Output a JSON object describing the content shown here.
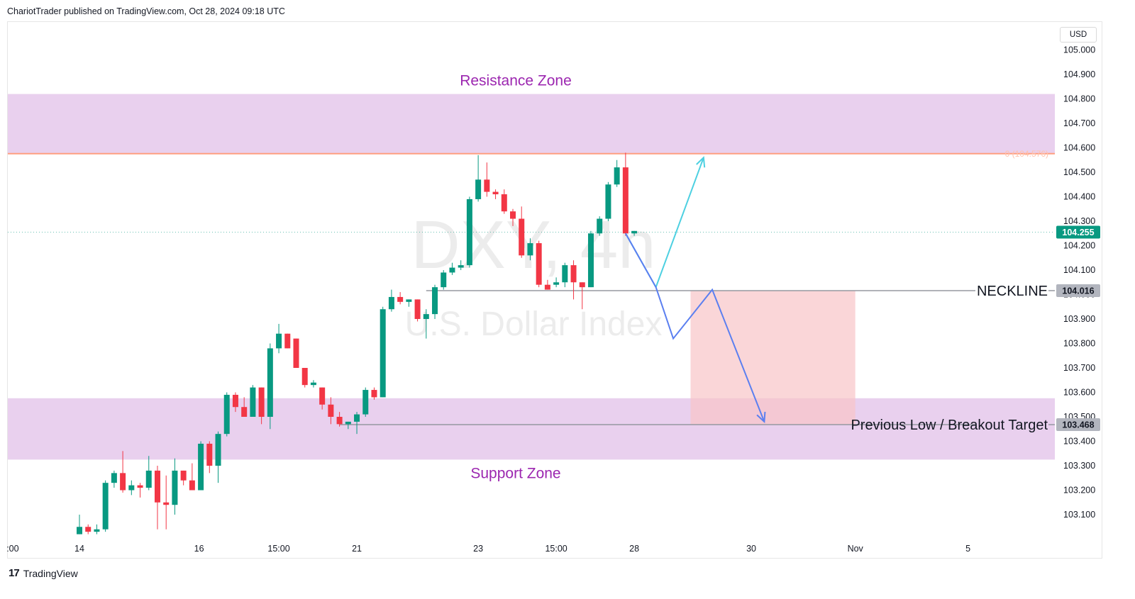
{
  "header": {
    "published_text": "ChariotTrader published on TradingView.com, Oct 28, 2024 09:18 UTC"
  },
  "footer": {
    "logo_mark": "17",
    "brand": "TradingView"
  },
  "price_scale": {
    "currency": "USD"
  },
  "watermark": {
    "symbol": "DXY, 4h",
    "name": "U.S. Dollar Index"
  },
  "colors": {
    "up": "#089981",
    "down": "#f23645",
    "zone": "#e1bee7",
    "target_box": "#f8c4c8",
    "zone_text": "#9c27b0",
    "fib_line": "#ff9f80",
    "bullish_path": "#4dd0e1",
    "bearish_path": "#5b7ff0",
    "level_line": "#9598a1",
    "last_price": "#089981"
  },
  "chart_data": {
    "type": "candlestick",
    "symbol": "DXY",
    "timeframe": "4h",
    "y_axis": {
      "min": 103.0,
      "max": 105.08,
      "ticks": [
        "103.100",
        "103.200",
        "103.300",
        "103.400",
        "103.500",
        "103.600",
        "103.700",
        "103.800",
        "103.900",
        "104.000",
        "104.100",
        "104.200",
        "104.300",
        "104.400",
        "104.500",
        "104.600",
        "104.700",
        "104.800",
        "104.900",
        "105.000"
      ]
    },
    "x_axis": {
      "labels": [
        {
          "label": ":00",
          "at": -7.7
        },
        {
          "label": "14",
          "at": 0
        },
        {
          "label": "16",
          "at": 13.8
        },
        {
          "label": "15:00",
          "at": 23
        },
        {
          "label": "21",
          "at": 32
        },
        {
          "label": "23",
          "at": 46
        },
        {
          "label": "15:00",
          "at": 55
        },
        {
          "label": "28",
          "at": 64
        },
        {
          "label": "30",
          "at": 77.5
        },
        {
          "label": "Nov",
          "at": 89.5
        },
        {
          "label": "5",
          "at": 102.5
        }
      ]
    },
    "candles": [
      {
        "o": 103.02,
        "h": 103.1,
        "l": 103.02,
        "c": 103.05
      },
      {
        "o": 103.05,
        "h": 103.06,
        "l": 103.02,
        "c": 103.03
      },
      {
        "o": 103.03,
        "h": 103.06,
        "l": 103.02,
        "c": 103.04
      },
      {
        "o": 103.04,
        "h": 103.24,
        "l": 103.03,
        "c": 103.23
      },
      {
        "o": 103.23,
        "h": 103.28,
        "l": 103.21,
        "c": 103.27
      },
      {
        "o": 103.27,
        "h": 103.36,
        "l": 103.19,
        "c": 103.2
      },
      {
        "o": 103.2,
        "h": 103.24,
        "l": 103.18,
        "c": 103.22
      },
      {
        "o": 103.22,
        "h": 103.23,
        "l": 103.17,
        "c": 103.21
      },
      {
        "o": 103.21,
        "h": 103.34,
        "l": 103.2,
        "c": 103.28
      },
      {
        "o": 103.28,
        "h": 103.3,
        "l": 103.04,
        "c": 103.15
      },
      {
        "o": 103.15,
        "h": 103.26,
        "l": 103.04,
        "c": 103.14
      },
      {
        "o": 103.14,
        "h": 103.33,
        "l": 103.1,
        "c": 103.28
      },
      {
        "o": 103.28,
        "h": 103.28,
        "l": 103.22,
        "c": 103.24
      },
      {
        "o": 103.24,
        "h": 103.31,
        "l": 103.2,
        "c": 103.2
      },
      {
        "o": 103.2,
        "h": 103.4,
        "l": 103.2,
        "c": 103.39
      },
      {
        "o": 103.39,
        "h": 103.4,
        "l": 103.27,
        "c": 103.3
      },
      {
        "o": 103.3,
        "h": 103.44,
        "l": 103.23,
        "c": 103.43
      },
      {
        "o": 103.43,
        "h": 103.6,
        "l": 103.42,
        "c": 103.59
      },
      {
        "o": 103.59,
        "h": 103.6,
        "l": 103.52,
        "c": 103.54
      },
      {
        "o": 103.54,
        "h": 103.58,
        "l": 103.5,
        "c": 103.5
      },
      {
        "o": 103.5,
        "h": 103.63,
        "l": 103.5,
        "c": 103.62
      },
      {
        "o": 103.62,
        "h": 103.62,
        "l": 103.47,
        "c": 103.5
      },
      {
        "o": 103.5,
        "h": 103.8,
        "l": 103.45,
        "c": 103.78
      },
      {
        "o": 103.78,
        "h": 103.88,
        "l": 103.76,
        "c": 103.84
      },
      {
        "o": 103.84,
        "h": 103.84,
        "l": 103.78,
        "c": 103.78
      },
      {
        "o": 103.82,
        "h": 103.82,
        "l": 103.7,
        "c": 103.7
      },
      {
        "o": 103.7,
        "h": 103.7,
        "l": 103.62,
        "c": 103.63
      },
      {
        "o": 103.63,
        "h": 103.65,
        "l": 103.62,
        "c": 103.64
      },
      {
        "o": 103.62,
        "h": 103.62,
        "l": 103.53,
        "c": 103.55
      },
      {
        "o": 103.55,
        "h": 103.58,
        "l": 103.47,
        "c": 103.5
      },
      {
        "o": 103.5,
        "h": 103.52,
        "l": 103.46,
        "c": 103.47
      },
      {
        "o": 103.47,
        "h": 103.48,
        "l": 103.45,
        "c": 103.48
      },
      {
        "o": 103.48,
        "h": 103.52,
        "l": 103.43,
        "c": 103.51
      },
      {
        "o": 103.51,
        "h": 103.62,
        "l": 103.5,
        "c": 103.61
      },
      {
        "o": 103.61,
        "h": 103.62,
        "l": 103.57,
        "c": 103.58
      },
      {
        "o": 103.58,
        "h": 103.95,
        "l": 103.58,
        "c": 103.94
      },
      {
        "o": 103.94,
        "h": 104.02,
        "l": 103.93,
        "c": 103.99
      },
      {
        "o": 103.99,
        "h": 104.01,
        "l": 103.96,
        "c": 103.97
      },
      {
        "o": 103.97,
        "h": 103.98,
        "l": 103.95,
        "c": 103.98
      },
      {
        "o": 103.98,
        "h": 103.98,
        "l": 103.89,
        "c": 103.9
      },
      {
        "o": 103.9,
        "h": 103.94,
        "l": 103.82,
        "c": 103.92
      },
      {
        "o": 103.92,
        "h": 104.04,
        "l": 103.9,
        "c": 104.03
      },
      {
        "o": 104.03,
        "h": 104.1,
        "l": 104.02,
        "c": 104.09
      },
      {
        "o": 104.09,
        "h": 104.13,
        "l": 104.08,
        "c": 104.11
      },
      {
        "o": 104.11,
        "h": 104.14,
        "l": 104.1,
        "c": 104.12
      },
      {
        "o": 104.12,
        "h": 104.4,
        "l": 104.11,
        "c": 104.39
      },
      {
        "o": 104.39,
        "h": 104.57,
        "l": 104.38,
        "c": 104.47
      },
      {
        "o": 104.47,
        "h": 104.54,
        "l": 104.4,
        "c": 104.42
      },
      {
        "o": 104.42,
        "h": 104.43,
        "l": 104.39,
        "c": 104.41
      },
      {
        "o": 104.41,
        "h": 104.43,
        "l": 104.33,
        "c": 104.34
      },
      {
        "o": 104.34,
        "h": 104.35,
        "l": 104.28,
        "c": 104.31
      },
      {
        "o": 104.31,
        "h": 104.36,
        "l": 104.15,
        "c": 104.16
      },
      {
        "o": 104.16,
        "h": 104.23,
        "l": 104.14,
        "c": 104.21
      },
      {
        "o": 104.21,
        "h": 104.22,
        "l": 104.03,
        "c": 104.04
      },
      {
        "o": 104.04,
        "h": 104.06,
        "l": 104.02,
        "c": 104.02
      },
      {
        "o": 104.04,
        "h": 104.07,
        "l": 104.03,
        "c": 104.05
      },
      {
        "o": 104.05,
        "h": 104.13,
        "l": 104.03,
        "c": 104.12
      },
      {
        "o": 104.12,
        "h": 104.14,
        "l": 103.98,
        "c": 104.05
      },
      {
        "o": 104.05,
        "h": 104.05,
        "l": 103.94,
        "c": 104.03
      },
      {
        "o": 104.03,
        "h": 104.26,
        "l": 104.03,
        "c": 104.25
      },
      {
        "o": 104.25,
        "h": 104.32,
        "l": 104.24,
        "c": 104.31
      },
      {
        "o": 104.31,
        "h": 104.46,
        "l": 104.3,
        "c": 104.45
      },
      {
        "o": 104.45,
        "h": 104.55,
        "l": 104.44,
        "c": 104.52
      },
      {
        "o": 104.52,
        "h": 104.58,
        "l": 104.24,
        "c": 104.25
      },
      {
        "o": 104.25,
        "h": 104.26,
        "l": 104.24,
        "c": 104.26
      }
    ],
    "zones": [
      {
        "name": "resistance",
        "label": "Resistance Zone",
        "top": 104.82,
        "bottom": 104.576
      },
      {
        "name": "support",
        "label": "Support Zone",
        "top": 103.576,
        "bottom": 103.325
      }
    ],
    "levels": [
      {
        "name": "fib",
        "label": "0 (104.576)",
        "price": 104.576
      },
      {
        "name": "last",
        "label": "104.255",
        "price": 104.255
      },
      {
        "name": "neckline",
        "label": "NECKLINE",
        "badge": "104.016",
        "price": 104.016,
        "from": 40
      },
      {
        "name": "previous-low",
        "label": "Previous Low / Breakout Target",
        "badge": "103.468",
        "price": 103.468,
        "from": 30
      }
    ],
    "target_box": {
      "from": 70.5,
      "to": 89.5,
      "top": 104.016,
      "bottom": 103.468
    },
    "projections": [
      {
        "name": "bullish-path",
        "points": [
          [
            63,
            104.25
          ],
          [
            66.5,
            104.03
          ],
          [
            72,
            104.56
          ]
        ]
      },
      {
        "name": "bearish-path",
        "points": [
          [
            63,
            104.25
          ],
          [
            66.5,
            104.03
          ],
          [
            68.5,
            103.82
          ],
          [
            73,
            104.02
          ],
          [
            79,
            103.48
          ]
        ]
      }
    ]
  }
}
